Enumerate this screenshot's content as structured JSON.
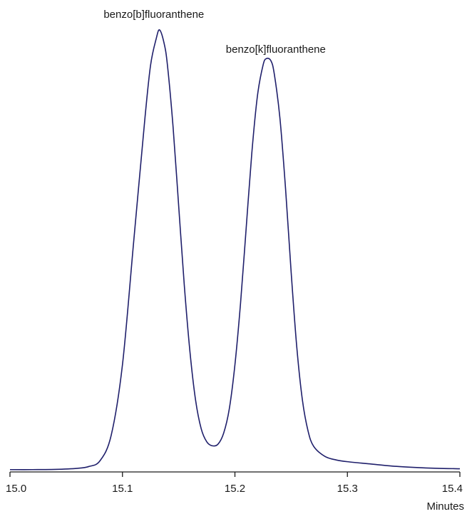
{
  "chart_data": {
    "type": "line",
    "title": "",
    "xlabel": "Minutes",
    "ylabel": "",
    "xlim": [
      15.0,
      15.4
    ],
    "ylim": [
      0,
      100
    ],
    "x_ticks": [
      "15.0",
      "15.1",
      "15.2",
      "15.3",
      "15.4"
    ],
    "grid": false,
    "line_color": "#1f1f6b",
    "series": [
      {
        "x": [
          15.0,
          15.02,
          15.04,
          15.06,
          15.07,
          15.08,
          15.09,
          15.1,
          15.11,
          15.12,
          15.125,
          15.13,
          15.133,
          15.137,
          15.14,
          15.145,
          15.15,
          15.155,
          15.16,
          15.165,
          15.17,
          15.175,
          15.18,
          15.185,
          15.19,
          15.195,
          15.2,
          15.205,
          15.21,
          15.215,
          15.22,
          15.225,
          15.228,
          15.232,
          15.235,
          15.24,
          15.245,
          15.25,
          15.255,
          15.26,
          15.265,
          15.27,
          15.28,
          15.29,
          15.3,
          15.32,
          15.34,
          15.36,
          15.38,
          15.4
        ],
        "y": [
          0.2,
          0.2,
          0.25,
          0.5,
          0.9,
          2.2,
          8.0,
          24.0,
          52.0,
          80.0,
          92.0,
          98.0,
          100.0,
          97.0,
          92.0,
          78.0,
          60.0,
          42.0,
          27.0,
          16.0,
          9.5,
          6.5,
          5.6,
          6.0,
          8.5,
          14.0,
          24.0,
          38.0,
          55.0,
          72.0,
          85.0,
          92.0,
          93.5,
          93.0,
          90.0,
          80.0,
          64.0,
          45.0,
          28.0,
          16.0,
          9.0,
          5.5,
          3.2,
          2.4,
          2.0,
          1.5,
          1.0,
          0.7,
          0.5,
          0.4
        ]
      }
    ],
    "annotations": [
      {
        "text": "benzo[b]fluoranthene",
        "x": 15.133
      },
      {
        "text": "benzo[k]fluoranthene",
        "x": 15.23
      }
    ]
  }
}
